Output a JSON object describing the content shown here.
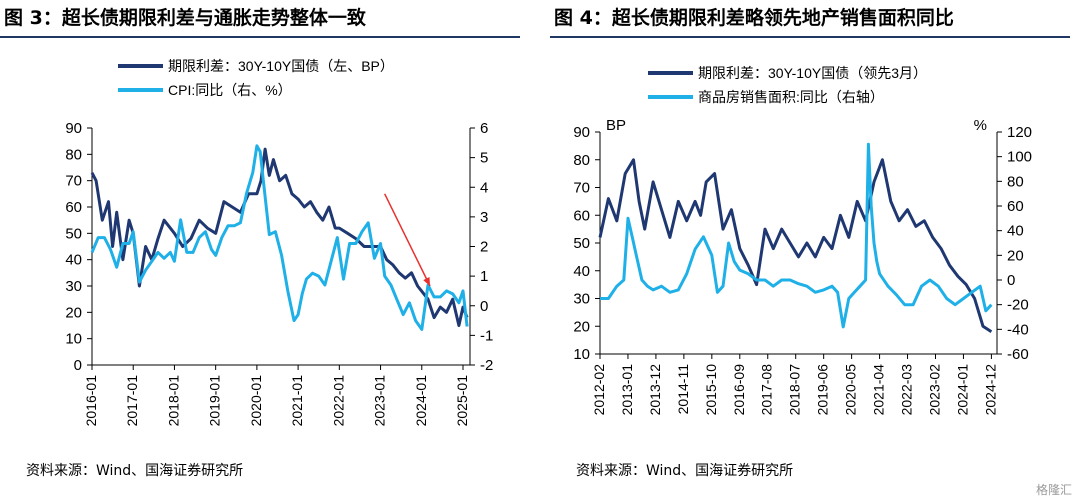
{
  "charts": [
    {
      "title": "图 3：超长债期限利差与通胀走势整体一致",
      "source": "资料来源：Wind、国海证券研究所",
      "chart_data": {
        "type": "line",
        "title": "",
        "legend_placement": "top-center",
        "x_tick_labels": [
          "2016-01",
          "2017-01",
          "2018-01",
          "2019-01",
          "2020-01",
          "2021-01",
          "2022-01",
          "2023-01",
          "2024-01",
          "2025-01"
        ],
        "y_left": {
          "min": 0,
          "max": 90,
          "ticks": [
            "0",
            "10",
            "20",
            "30",
            "40",
            "50",
            "60",
            "70",
            "80",
            "90"
          ],
          "unit_label": ""
        },
        "y_right": {
          "min": -2,
          "max": 6,
          "ticks": [
            "-2",
            "-1",
            "0",
            "1",
            "2",
            "3",
            "4",
            "5",
            "6"
          ],
          "unit_label": ""
        },
        "series": [
          {
            "name": "期限利差：30Y-10Y国债（左、BP）",
            "axis": "left",
            "color": "#1f3872",
            "x": [
              2016.0,
              2016.1,
              2016.25,
              2016.4,
              2016.5,
              2016.6,
              2016.75,
              2016.9,
              2017.0,
              2017.15,
              2017.3,
              2017.45,
              2017.6,
              2017.75,
              2017.9,
              2018.0,
              2018.2,
              2018.4,
              2018.6,
              2018.8,
              2019.0,
              2019.2,
              2019.4,
              2019.6,
              2019.8,
              2020.0,
              2020.1,
              2020.2,
              2020.3,
              2020.4,
              2020.55,
              2020.7,
              2020.85,
              2021.0,
              2021.15,
              2021.3,
              2021.45,
              2021.6,
              2021.75,
              2021.9,
              2022.0,
              2022.2,
              2022.4,
              2022.6,
              2022.8,
              2023.0,
              2023.15,
              2023.3,
              2023.45,
              2023.6,
              2023.75,
              2023.9,
              2024.0,
              2024.15,
              2024.3,
              2024.45,
              2024.6,
              2024.75,
              2024.9,
              2025.0,
              2025.1
            ],
            "y": [
              73,
              70,
              55,
              62,
              45,
              58,
              40,
              55,
              50,
              30,
              45,
              40,
              48,
              55,
              52,
              50,
              45,
              48,
              55,
              52,
              50,
              62,
              60,
              58,
              65,
              65,
              70,
              82,
              72,
              78,
              70,
              72,
              65,
              63,
              60,
              62,
              58,
              55,
              60,
              52,
              52,
              50,
              48,
              45,
              45,
              45,
              40,
              38,
              35,
              33,
              35,
              30,
              28,
              25,
              18,
              22,
              20,
              25,
              15,
              22,
              18
            ]
          },
          {
            "name": "CPI:同比（右、%）",
            "axis": "right",
            "color": "#1fb0e8",
            "x": [
              2016.0,
              2016.15,
              2016.3,
              2016.45,
              2016.6,
              2016.75,
              2016.9,
              2017.0,
              2017.15,
              2017.3,
              2017.45,
              2017.6,
              2017.75,
              2017.9,
              2018.0,
              2018.15,
              2018.3,
              2018.45,
              2018.6,
              2018.75,
              2018.9,
              2019.0,
              2019.15,
              2019.3,
              2019.45,
              2019.6,
              2019.75,
              2019.9,
              2020.0,
              2020.08,
              2020.15,
              2020.3,
              2020.45,
              2020.6,
              2020.75,
              2020.9,
              2021.0,
              2021.1,
              2021.2,
              2021.35,
              2021.5,
              2021.65,
              2021.8,
              2021.95,
              2022.1,
              2022.25,
              2022.4,
              2022.55,
              2022.7,
              2022.85,
              2023.0,
              2023.1,
              2023.25,
              2023.4,
              2023.55,
              2023.7,
              2023.85,
              2024.0,
              2024.15,
              2024.3,
              2024.45,
              2024.6,
              2024.75,
              2024.9,
              2025.0,
              2025.1
            ],
            "y": [
              1.8,
              2.3,
              2.3,
              1.9,
              1.3,
              2.1,
              2.1,
              2.5,
              0.8,
              1.2,
              1.5,
              1.8,
              1.6,
              1.8,
              1.5,
              2.9,
              1.8,
              1.8,
              2.3,
              2.5,
              1.9,
              1.7,
              2.3,
              2.7,
              2.7,
              2.8,
              3.8,
              4.5,
              5.4,
              5.2,
              4.3,
              2.4,
              2.5,
              1.7,
              0.5,
              -0.5,
              -0.3,
              0.4,
              0.9,
              1.1,
              1.0,
              0.7,
              1.5,
              2.3,
              0.9,
              2.1,
              2.1,
              2.5,
              2.8,
              1.6,
              2.1,
              1.0,
              0.7,
              0.2,
              -0.3,
              0.1,
              -0.5,
              -0.8,
              0.7,
              0.3,
              0.3,
              0.5,
              0.4,
              0.1,
              0.5,
              -0.7
            ]
          }
        ],
        "annotation": {
          "type": "arrow",
          "color": "#e8312e",
          "from": [
            2023.1,
            65
          ],
          "to": [
            2024.2,
            30
          ]
        }
      }
    },
    {
      "title": "图 4：超长债期限利差略领先地产销售面积同比",
      "source": "资料来源：Wind、国海证券研究所",
      "chart_data": {
        "type": "line",
        "title": "",
        "legend_placement": "top-center",
        "x_tick_labels": [
          "2012-02",
          "2013-01",
          "2013-12",
          "2014-11",
          "2015-10",
          "2016-09",
          "2017-08",
          "2018-07",
          "2019-06",
          "2020-05",
          "2021-04",
          "2022-03",
          "2023-02",
          "2024-01",
          "2024-12"
        ],
        "y_left": {
          "min": 10,
          "max": 90,
          "ticks": [
            "10",
            "20",
            "30",
            "40",
            "50",
            "60",
            "70",
            "80",
            "90"
          ],
          "unit_label": "BP"
        },
        "y_right": {
          "min": -60,
          "max": 120,
          "ticks": [
            "-60",
            "-40",
            "-20",
            "0",
            "20",
            "40",
            "60",
            "80",
            "100",
            "120"
          ],
          "unit_label": "%"
        },
        "series": [
          {
            "name": "期限利差：30Y-10Y国债（领先3月）",
            "axis": "left",
            "color": "#1f3872",
            "x": [
              0,
              0.3,
              0.6,
              0.9,
              1.2,
              1.4,
              1.6,
              1.9,
              2.2,
              2.5,
              2.8,
              3.1,
              3.4,
              3.6,
              3.8,
              4.1,
              4.4,
              4.7,
              5.0,
              5.3,
              5.6,
              5.9,
              6.2,
              6.5,
              6.8,
              7.1,
              7.4,
              7.7,
              8.0,
              8.3,
              8.6,
              8.9,
              9.2,
              9.5,
              9.8,
              10.1,
              10.4,
              10.7,
              11.0,
              11.3,
              11.6,
              11.9,
              12.2,
              12.5,
              12.8,
              13.1,
              13.4,
              13.7,
              14.0
            ],
            "y": [
              52,
              66,
              58,
              75,
              80,
              65,
              55,
              72,
              62,
              52,
              65,
              58,
              65,
              60,
              72,
              75,
              55,
              62,
              48,
              42,
              35,
              55,
              48,
              55,
              50,
              45,
              50,
              45,
              52,
              48,
              60,
              52,
              65,
              58,
              72,
              80,
              65,
              58,
              62,
              56,
              58,
              52,
              48,
              42,
              38,
              35,
              30,
              20,
              18
            ]
          },
          {
            "name": "商品房销售面积:同比（右轴）",
            "axis": "right",
            "color": "#1fb0e8",
            "x": [
              0,
              0.3,
              0.6,
              0.85,
              1.0,
              1.15,
              1.3,
              1.5,
              1.7,
              1.9,
              2.2,
              2.5,
              2.8,
              3.1,
              3.4,
              3.7,
              4.0,
              4.2,
              4.4,
              4.6,
              4.8,
              5.0,
              5.3,
              5.6,
              5.9,
              6.2,
              6.5,
              6.8,
              7.1,
              7.4,
              7.7,
              8.0,
              8.3,
              8.5,
              8.7,
              8.9,
              9.1,
              9.3,
              9.5,
              9.6,
              9.7,
              9.8,
              9.9,
              10.0,
              10.3,
              10.6,
              10.9,
              11.2,
              11.5,
              11.8,
              12.1,
              12.4,
              12.7,
              13.0,
              13.3,
              13.6,
              13.8,
              14.0
            ],
            "y": [
              -15,
              -15,
              -5,
              0,
              50,
              35,
              20,
              0,
              -5,
              -8,
              -5,
              -10,
              -8,
              5,
              25,
              35,
              20,
              -10,
              -5,
              30,
              15,
              8,
              5,
              0,
              0,
              -5,
              0,
              0,
              -3,
              -5,
              -10,
              -8,
              -5,
              -10,
              -38,
              -15,
              -10,
              -5,
              0,
              110,
              60,
              30,
              15,
              5,
              -5,
              -12,
              -20,
              -20,
              -5,
              0,
              -5,
              -15,
              -20,
              -15,
              -10,
              -5,
              -25,
              -20
            ]
          }
        ]
      }
    }
  ],
  "watermark": "格隆汇"
}
